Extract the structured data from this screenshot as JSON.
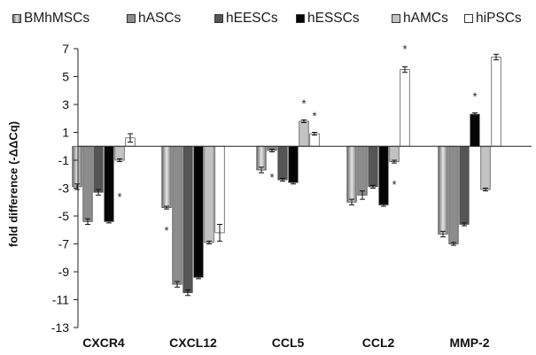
{
  "chart_data": {
    "type": "bar",
    "title": "",
    "xlabel": "",
    "ylabel": "fold difference  (-ΔΔCq)",
    "ylim": [
      -13,
      7
    ],
    "yticks": [
      7,
      5,
      3,
      1,
      -1,
      -3,
      -5,
      -7,
      -9,
      -11,
      -13
    ],
    "grid": false,
    "legend_position": "top",
    "categories": [
      "CXCR4",
      "CXCL12",
      "CCL5",
      "CCL2",
      "MMP-2"
    ],
    "series": [
      {
        "name": "BMhMSCs",
        "color": "gradient-grey",
        "values": [
          -2.9,
          -4.4,
          -1.7,
          -4.0,
          -6.3
        ],
        "errors": [
          0.2,
          0.1,
          0.2,
          0.2,
          0.2
        ]
      },
      {
        "name": "hASCs",
        "color": "#8c8c8c",
        "values": [
          -5.4,
          -9.9,
          -0.3,
          -3.5,
          -7.0
        ],
        "errors": [
          0.2,
          0.2,
          0.1,
          0.3,
          0.1
        ]
      },
      {
        "name": "hEESCs",
        "color": "#555555",
        "values": [
          -3.3,
          -10.5,
          -2.4,
          -2.9,
          -5.6
        ],
        "errors": [
          0.2,
          0.2,
          0.1,
          0.1,
          0.1
        ]
      },
      {
        "name": "hESSCs",
        "color": "#050505",
        "values": [
          -5.4,
          -9.4,
          -2.6,
          -4.2,
          2.3
        ],
        "errors": [
          0.1,
          0.1,
          0.1,
          0.1,
          0.1
        ]
      },
      {
        "name": "hAMCs",
        "color": "#c2c2c2",
        "values": [
          -1.0,
          -6.9,
          1.8,
          -1.1,
          -3.1
        ],
        "errors": [
          0.1,
          0.1,
          0.1,
          0.1,
          0.1
        ]
      },
      {
        "name": "hiPSCs",
        "color": "#ffffff",
        "values": [
          0.6,
          -6.2,
          0.9,
          5.5,
          6.4
        ],
        "errors": [
          0.3,
          0.6,
          0.1,
          0.2,
          0.2
        ]
      }
    ],
    "annotations": [
      {
        "text": "*",
        "category": 0,
        "series": 4,
        "y": -3.6
      },
      {
        "text": "*",
        "category": 1,
        "series": 0,
        "y": -6.0
      },
      {
        "text": "*",
        "category": 2,
        "series": 1,
        "y": -2.2
      },
      {
        "text": "*",
        "category": 2,
        "series": 4,
        "y": 3.1
      },
      {
        "text": "*",
        "category": 2,
        "series": 5,
        "y": 2.2
      },
      {
        "text": "*",
        "category": 3,
        "series": 4,
        "y": -2.7
      },
      {
        "text": "*",
        "category": 3,
        "series": 5,
        "y": 7.0
      },
      {
        "text": "*",
        "category": 4,
        "series": 3,
        "y": 3.6
      }
    ]
  }
}
